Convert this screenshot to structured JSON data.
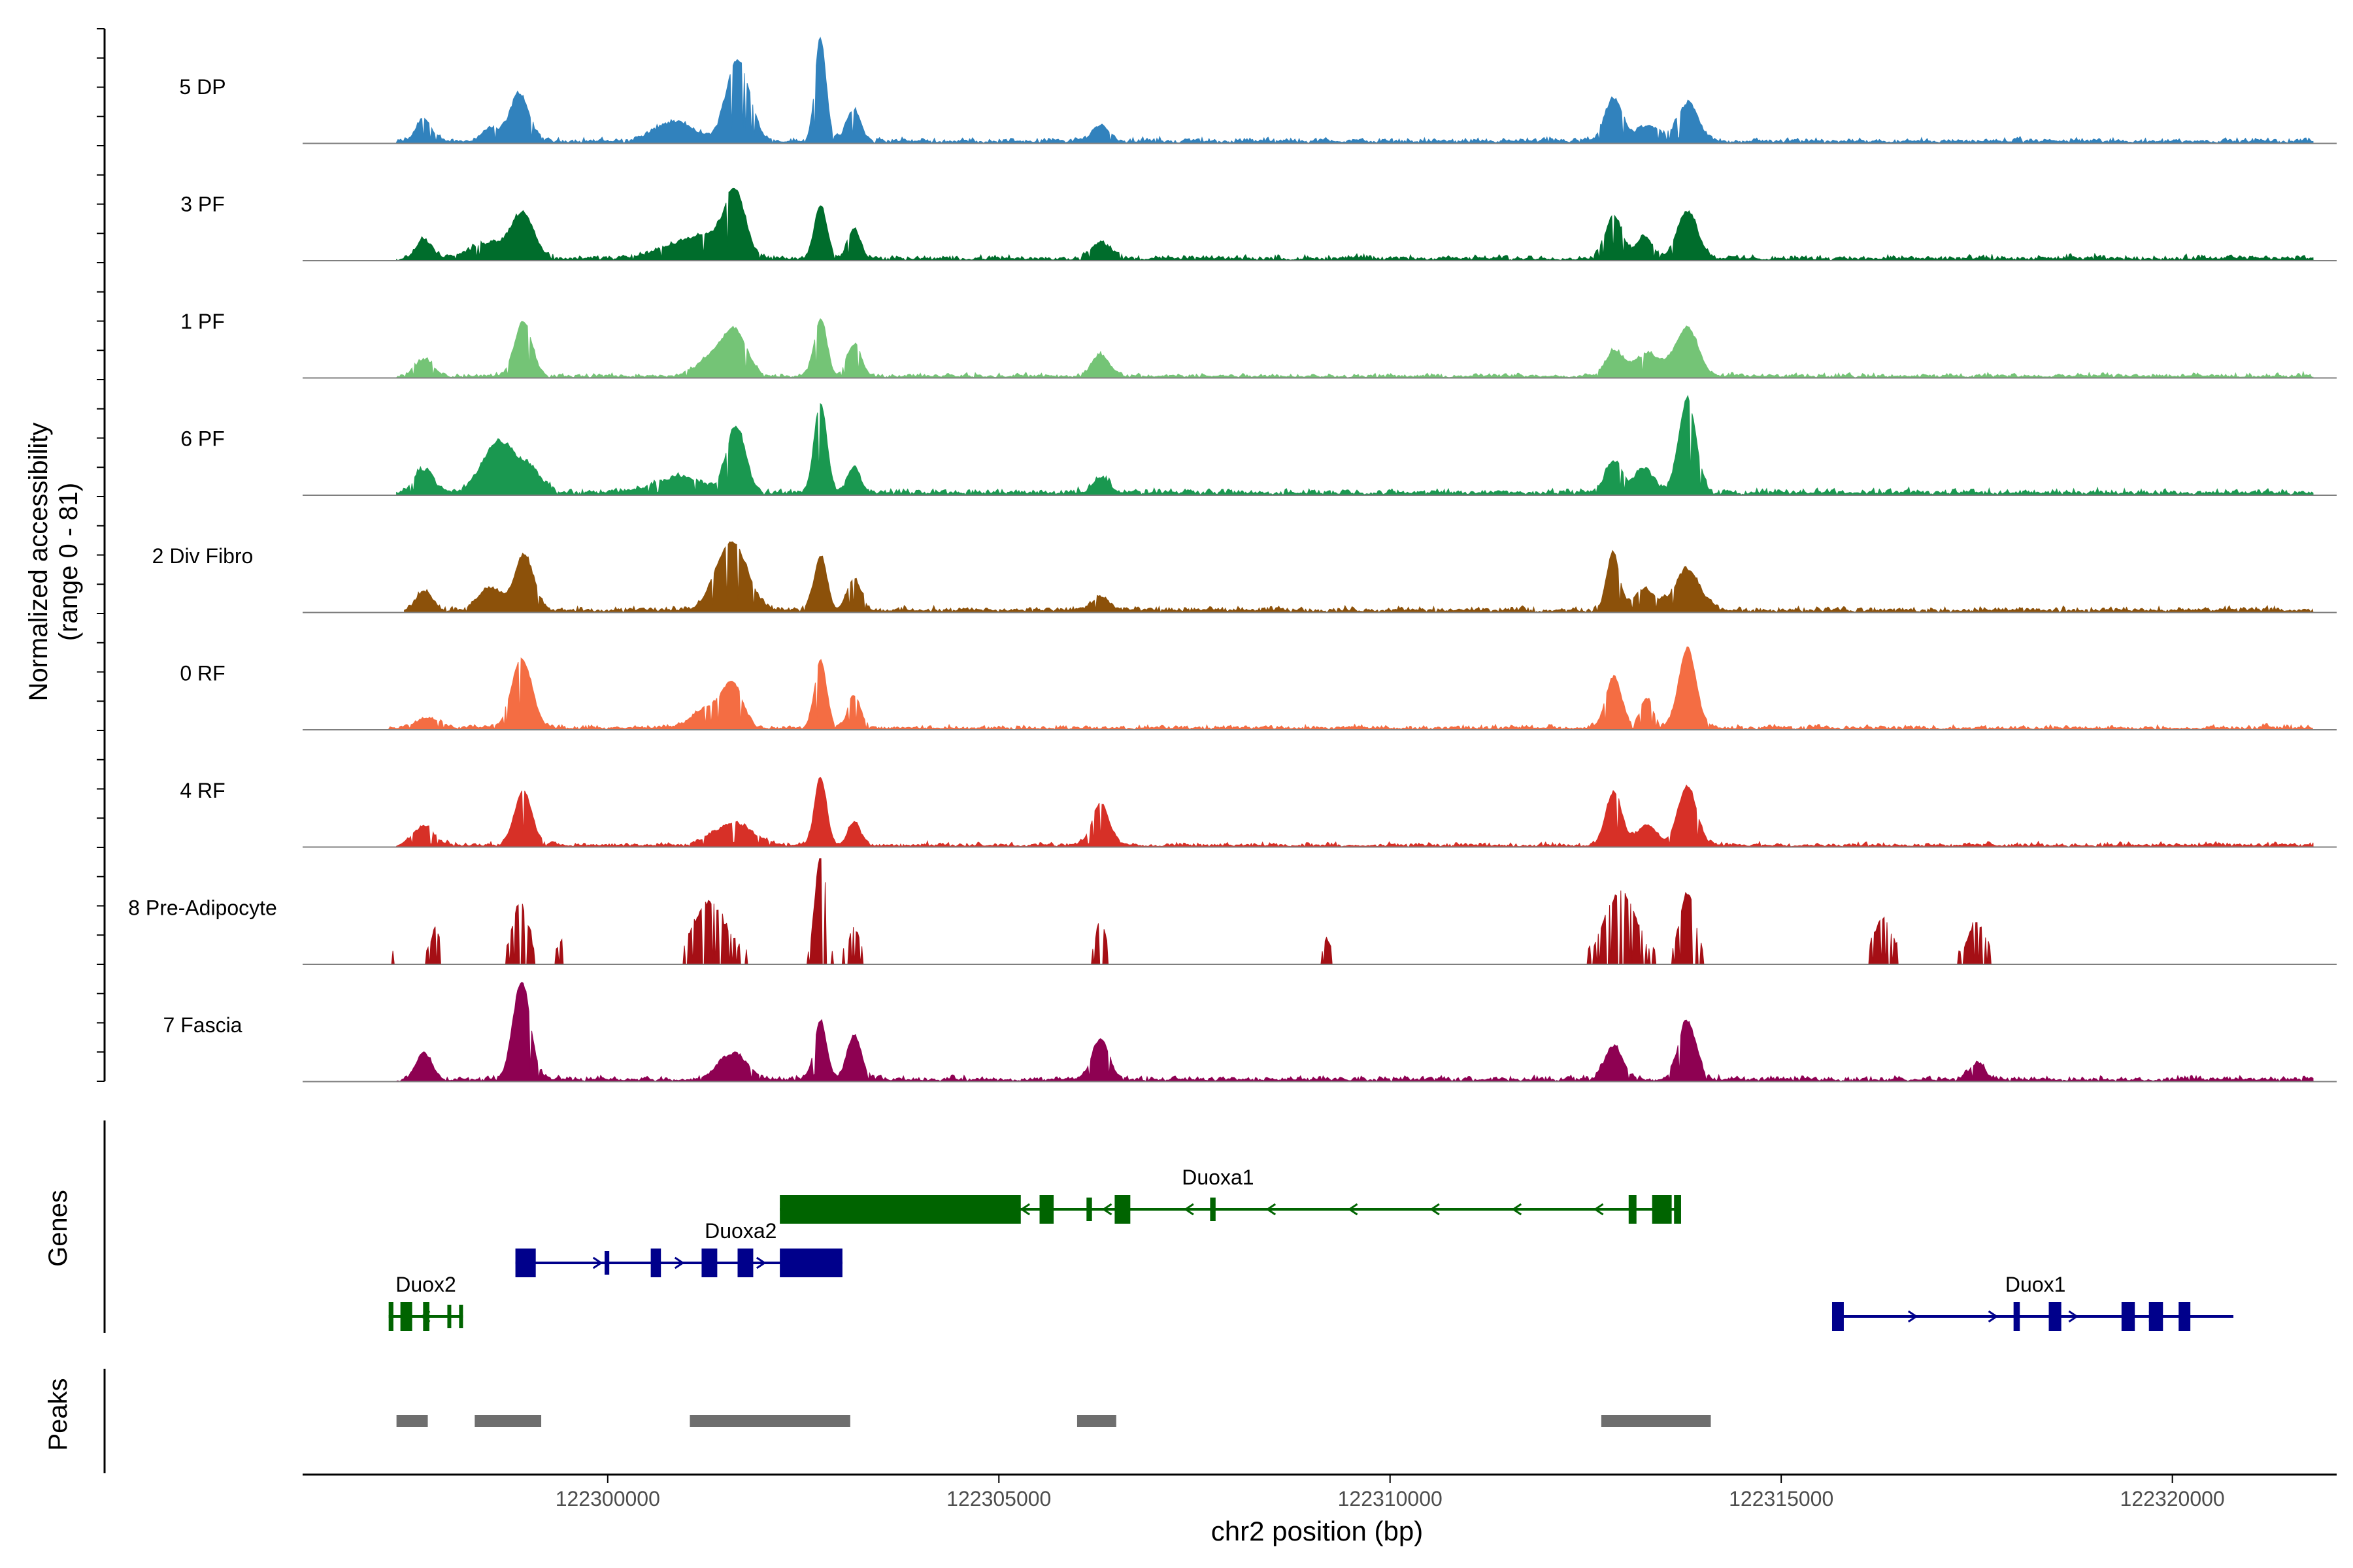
{
  "chart_data": {
    "type": "area",
    "title": "",
    "xlabel": "chr2 position (bp)",
    "xlim": [
      122296100,
      122322100
    ],
    "xticks": [
      122300000,
      122305000,
      122310000,
      122315000,
      122320000
    ],
    "xtick_labels": [
      "122300000",
      "122305000",
      "122310000",
      "122315000",
      "122320000"
    ],
    "ylabel_line1": "Normalized accessibility",
    "ylabel_line2": "(range 0 - 81)",
    "ylim": [
      0,
      81
    ],
    "panel_labels": {
      "genes": "Genes",
      "peaks": "Peaks"
    },
    "tracks": [
      {
        "name": "5 DP",
        "color": "#3182bd",
        "range": [
          122297300,
          122321800
        ],
        "noise": 0.06,
        "peaks": [
          [
            122297650,
            0.22,
            90
          ],
          [
            122298500,
            0.12,
            110
          ],
          [
            122298870,
            0.45,
            120
          ],
          [
            122300850,
            0.18,
            250
          ],
          [
            122301620,
            0.55,
            130
          ],
          [
            122301750,
            0.3,
            140
          ],
          [
            122302720,
            0.96,
            70
          ],
          [
            122303140,
            0.3,
            90
          ],
          [
            122306300,
            0.15,
            110
          ],
          [
            122312860,
            0.4,
            110
          ],
          [
            122313300,
            0.15,
            140
          ],
          [
            122313810,
            0.35,
            130
          ]
        ]
      },
      {
        "name": "3 PF",
        "color": "#006d2c",
        "range": [
          122297300,
          122321800
        ],
        "noise": 0.06,
        "peaks": [
          [
            122297650,
            0.18,
            100
          ],
          [
            122298920,
            0.4,
            140
          ],
          [
            122298500,
            0.15,
            250
          ],
          [
            122300850,
            0.12,
            250
          ],
          [
            122301630,
            0.6,
            130
          ],
          [
            122301300,
            0.2,
            220
          ],
          [
            122302720,
            0.5,
            80
          ],
          [
            122303150,
            0.28,
            80
          ],
          [
            122306300,
            0.15,
            130
          ],
          [
            122312860,
            0.4,
            110
          ],
          [
            122313250,
            0.22,
            100
          ],
          [
            122313800,
            0.45,
            130
          ]
        ]
      },
      {
        "name": "1 PF",
        "color": "#74c476",
        "range": [
          122297300,
          122321800
        ],
        "noise": 0.05,
        "peaks": [
          [
            122297650,
            0.15,
            120
          ],
          [
            122298920,
            0.52,
            110
          ],
          [
            122301630,
            0.38,
            150
          ],
          [
            122301350,
            0.18,
            200
          ],
          [
            122302720,
            0.54,
            80
          ],
          [
            122303150,
            0.3,
            90
          ],
          [
            122306300,
            0.2,
            110
          ],
          [
            122312860,
            0.22,
            110
          ],
          [
            122313300,
            0.2,
            200
          ],
          [
            122313800,
            0.45,
            140
          ]
        ]
      },
      {
        "name": "6 PF",
        "color": "#1a9850",
        "range": [
          122297300,
          122321800
        ],
        "noise": 0.07,
        "peaks": [
          [
            122297650,
            0.22,
            120
          ],
          [
            122298600,
            0.48,
            200
          ],
          [
            122299000,
            0.2,
            150
          ],
          [
            122300900,
            0.15,
            300
          ],
          [
            122301640,
            0.62,
            120
          ],
          [
            122302720,
            0.85,
            80
          ],
          [
            122303150,
            0.25,
            80
          ],
          [
            122306300,
            0.15,
            100
          ],
          [
            122312860,
            0.3,
            110
          ],
          [
            122313250,
            0.22,
            120
          ],
          [
            122313800,
            0.88,
            110
          ]
        ]
      },
      {
        "name": "2 Div Fibro",
        "color": "#8c510a",
        "range": [
          122297400,
          122321800
        ],
        "noise": 0.06,
        "peaks": [
          [
            122297650,
            0.18,
            100
          ],
          [
            122298500,
            0.22,
            150
          ],
          [
            122298930,
            0.52,
            120
          ],
          [
            122301580,
            0.65,
            200
          ],
          [
            122302720,
            0.52,
            80
          ],
          [
            122303150,
            0.3,
            90
          ],
          [
            122306300,
            0.12,
            110
          ],
          [
            122312850,
            0.55,
            80
          ],
          [
            122313250,
            0.2,
            140
          ],
          [
            122313800,
            0.38,
            160
          ]
        ]
      },
      {
        "name": "0 RF",
        "color": "#f46d43",
        "range": [
          122297200,
          122321800
        ],
        "noise": 0.05,
        "peaks": [
          [
            122297700,
            0.1,
            150
          ],
          [
            122298900,
            0.65,
            130
          ],
          [
            122301600,
            0.38,
            120
          ],
          [
            122301300,
            0.2,
            200
          ],
          [
            122302720,
            0.64,
            75
          ],
          [
            122303150,
            0.3,
            80
          ],
          [
            122312860,
            0.48,
            100
          ],
          [
            122313280,
            0.28,
            80
          ],
          [
            122313800,
            0.75,
            110
          ]
        ]
      },
      {
        "name": "4 RF",
        "color": "#d73027",
        "range": [
          122297300,
          122321800
        ],
        "noise": 0.05,
        "peaks": [
          [
            122297650,
            0.18,
            130
          ],
          [
            122298920,
            0.52,
            110
          ],
          [
            122301600,
            0.2,
            250
          ],
          [
            122302720,
            0.64,
            75
          ],
          [
            122303150,
            0.22,
            80
          ],
          [
            122306300,
            0.38,
            110
          ],
          [
            122312860,
            0.5,
            100
          ],
          [
            122313280,
            0.2,
            120
          ],
          [
            122313800,
            0.55,
            120
          ]
        ]
      },
      {
        "name": "8 Pre-Adipocyte",
        "color": "#a50f15",
        "range": [
          122297200,
          122321000
        ],
        "noise": 0.1,
        "sparse": true,
        "peaks": [
          [
            122297250,
            0.1,
            30
          ],
          [
            122297800,
            0.3,
            60
          ],
          [
            122298880,
            0.55,
            100
          ],
          [
            122299400,
            0.18,
            50
          ],
          [
            122301300,
            0.55,
            200
          ],
          [
            122302720,
            0.98,
            70
          ],
          [
            122303150,
            0.3,
            80
          ],
          [
            122306300,
            0.4,
            60
          ],
          [
            122309200,
            0.18,
            60
          ],
          [
            122312950,
            0.65,
            200
          ],
          [
            122313800,
            0.62,
            100
          ],
          [
            122316300,
            0.4,
            120
          ],
          [
            122317500,
            0.35,
            120
          ]
        ]
      },
      {
        "name": "7 Fascia",
        "color": "#8e0152",
        "range": [
          122297300,
          122321800
        ],
        "noise": 0.06,
        "peaks": [
          [
            122297650,
            0.26,
            100
          ],
          [
            122298900,
            0.92,
            110
          ],
          [
            122301600,
            0.25,
            180
          ],
          [
            122302720,
            0.54,
            80
          ],
          [
            122303150,
            0.42,
            90
          ],
          [
            122306300,
            0.38,
            110
          ],
          [
            122312860,
            0.32,
            110
          ],
          [
            122313800,
            0.55,
            110
          ],
          [
            122317500,
            0.15,
            100
          ]
        ]
      }
    ],
    "genes": [
      {
        "name": "Duoxa1",
        "strand": "-",
        "color": "#006400",
        "row": 0,
        "start": 122302200,
        "end": 122313720,
        "exons": [
          [
            122302200,
            122305280,
            "thick"
          ],
          [
            122305520,
            122305700,
            "thick"
          ],
          [
            122306120,
            122306190,
            "thin"
          ],
          [
            122306480,
            122306680,
            "thick"
          ],
          [
            122307700,
            122307770,
            "thin"
          ],
          [
            122313050,
            122313150,
            "thick"
          ],
          [
            122313350,
            122313600,
            "thick"
          ],
          [
            122313630,
            122313720,
            "thick"
          ]
        ]
      },
      {
        "name": "Duoxa2",
        "strand": "+",
        "color": "#00008b",
        "row": 1,
        "start": 122298820,
        "end": 122303000,
        "exons": [
          [
            122298820,
            122299080,
            "thick"
          ],
          [
            122299960,
            122300020,
            "thin"
          ],
          [
            122300550,
            122300680,
            "thick"
          ],
          [
            122301200,
            122301400,
            "thick"
          ],
          [
            122301660,
            122301860,
            "thick"
          ],
          [
            122302200,
            122303000,
            "thick"
          ]
        ]
      },
      {
        "name": "Duox2",
        "strand": "-",
        "color": "#006400",
        "row": 2,
        "start": 122297200,
        "end": 122298150,
        "exons": [
          [
            122297200,
            122297260,
            "thick"
          ],
          [
            122297350,
            122297500,
            "thick"
          ],
          [
            122297640,
            122297720,
            "thick"
          ],
          [
            122297950,
            122298000,
            "thin"
          ],
          [
            122298100,
            122298150,
            "thin"
          ]
        ]
      },
      {
        "name": "Duox1",
        "strand": "+",
        "color": "#00008b",
        "row": 2,
        "start": 122315650,
        "end": 122320780,
        "exons": [
          [
            122315650,
            122315800,
            "thick"
          ],
          [
            122317970,
            122318050,
            "thick"
          ],
          [
            122318420,
            122318580,
            "thick"
          ],
          [
            122319350,
            122319520,
            "thick"
          ],
          [
            122319700,
            122319880,
            "thick"
          ],
          [
            122320080,
            122320230,
            "thick"
          ]
        ]
      }
    ],
    "peak_regions": [
      [
        122297300,
        122297700
      ],
      [
        122298300,
        122299150
      ],
      [
        122301050,
        122303100
      ],
      [
        122306000,
        122306500
      ],
      [
        122312700,
        122314100
      ]
    ]
  }
}
